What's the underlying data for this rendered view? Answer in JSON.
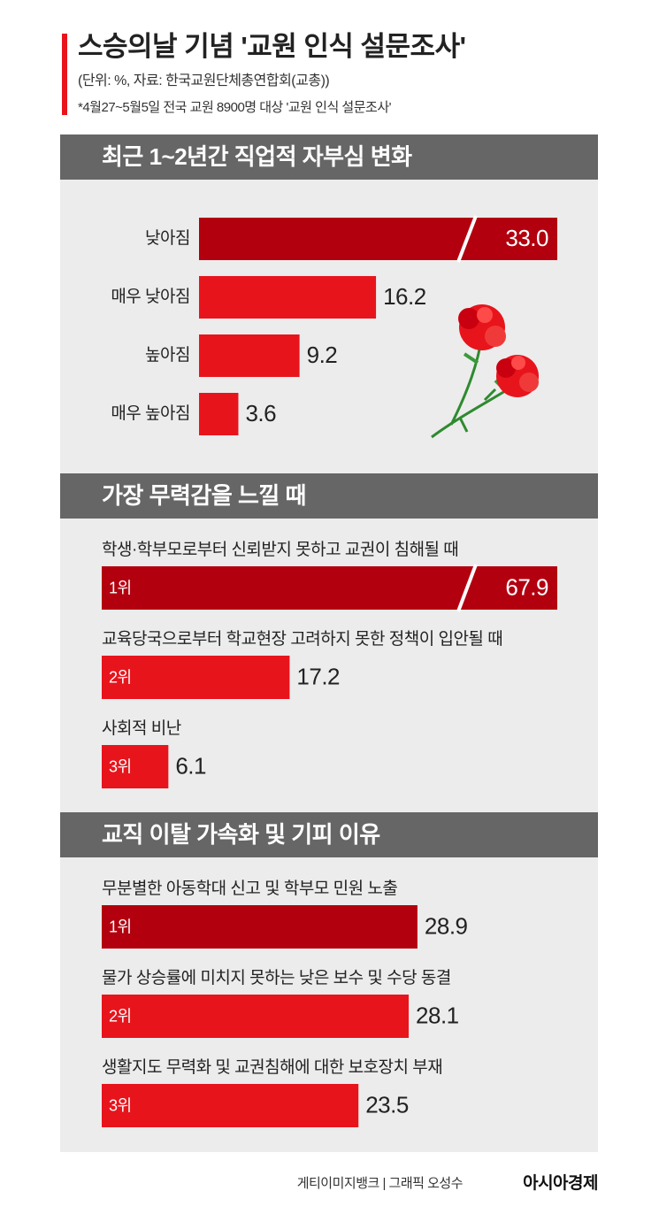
{
  "header": {
    "title": "스승의날 기념 '교원 인식 설문조사'",
    "unit_source": "(단위: %, 자료: 한국교원단체총연합회(교총))",
    "note": "*4월27~5월5일 전국 교원 8900명 대상 '교원 인식 설문조사'"
  },
  "chart_data": [
    {
      "type": "bar",
      "title": "최근 1~2년간 직업적 자부심 변화",
      "category_position": "left",
      "categories": [
        "낮아짐",
        "매우 낮아짐",
        "높아짐",
        "매우 높아짐"
      ],
      "values": [
        33.0,
        16.2,
        9.2,
        3.6
      ],
      "value_labels": [
        "33.0",
        "16.2",
        "9.2",
        "3.6"
      ],
      "colors": [
        "#b3000f",
        "#e8141c",
        "#e8141c",
        "#e8141c"
      ]
    },
    {
      "type": "bar",
      "title": "가장 무력감을 느낄 때",
      "category_position": "above",
      "categories": [
        "학생·학부모로부터 신뢰받지 못하고 교권이 침해될 때",
        "교육당국으로부터 학교현장 고려하지 못한 정책이 입안될 때",
        "사회적 비난"
      ],
      "ranks": [
        "1위",
        "2위",
        "3위"
      ],
      "values": [
        67.9,
        17.2,
        6.1
      ],
      "value_labels": [
        "67.9",
        "17.2",
        "6.1"
      ],
      "colors": [
        "#b3000f",
        "#e8141c",
        "#e8141c"
      ]
    },
    {
      "type": "bar",
      "title": "교직 이탈 가속화 및 기피 이유",
      "category_position": "above",
      "categories": [
        "무분별한 아동학대 신고 및 학부모 민원 노출",
        "물가 상승률에 미치지 못하는 낮은 보수 및 수당 동결",
        "생활지도 무력화 및 교권침해에 대한 보호장치 부재"
      ],
      "ranks": [
        "1위",
        "2위",
        "3위"
      ],
      "values": [
        28.9,
        28.1,
        23.5
      ],
      "value_labels": [
        "28.9",
        "28.1",
        "23.5"
      ],
      "colors": [
        "#b3000f",
        "#e8141c",
        "#e8141c"
      ]
    }
  ],
  "footer": {
    "credit": "게티이미지뱅크 | 그래픽 오성수",
    "brand": "아시아경제"
  }
}
